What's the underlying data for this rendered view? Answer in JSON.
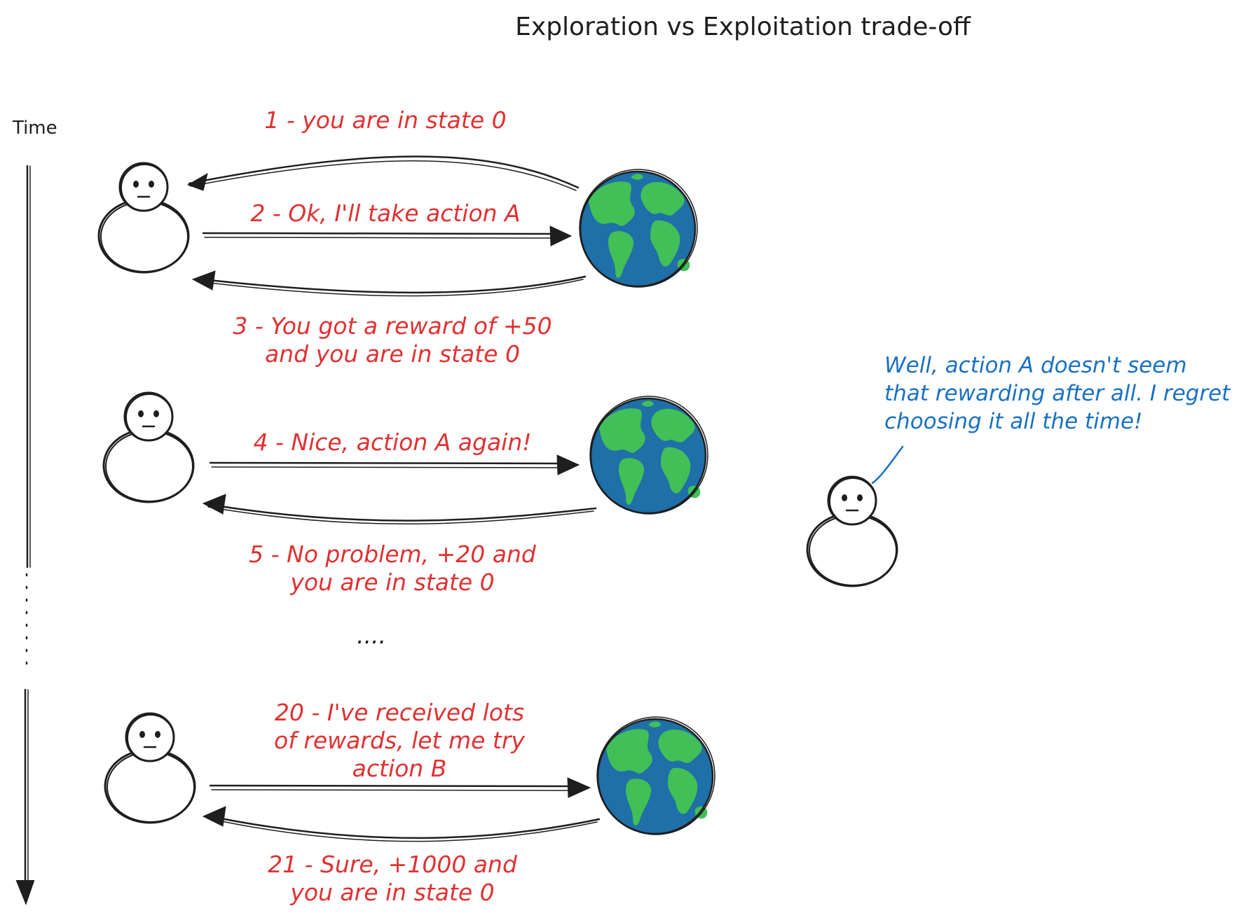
{
  "title": "Exploration vs Exploitation trade-off",
  "time_label": "Time",
  "messages": {
    "m1": "1 - you are in state 0",
    "m2": "2 - Ok, I'll take action A",
    "m3": "3 - You got a reward of +50\nand you are in state 0",
    "m4": "4 - Nice, action A again!",
    "m5": "5 - No problem, +20 and\nyou are in state 0",
    "ellipsis": "....",
    "m20": "20 - I've received lots\nof rewards, let me try\naction B",
    "m21": "21 - Sure, +1000 and\nyou are in state 0"
  },
  "thought": "Well, action A doesn't seem\nthat rewarding after all. I regret\nchoosing it all the time!",
  "colors": {
    "red_text": "#e03131",
    "blue_text": "#1971c2",
    "stroke": "#1e1e1e",
    "ocean": "#1f6fa8",
    "land": "#40c057"
  },
  "icons": [
    "person-icon",
    "earth-icon"
  ]
}
